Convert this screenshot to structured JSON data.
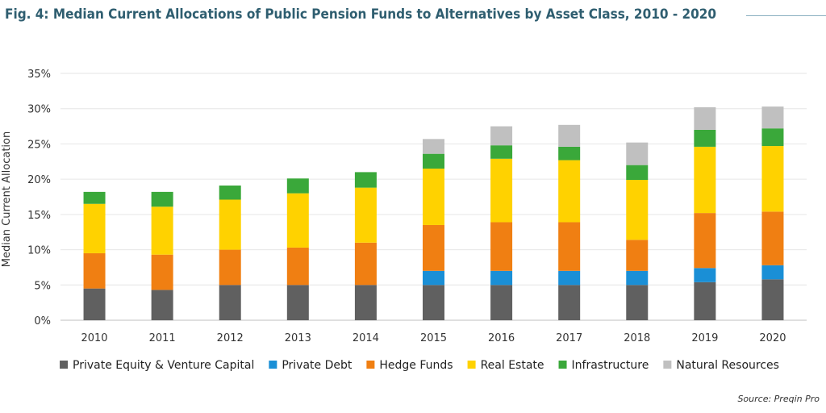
{
  "title": "Fig. 4: Median Current Allocations of Public Pension Funds to Alternatives by Asset Class, 2010 - 2020",
  "source": "Source: Preqin Pro",
  "chart_data": {
    "type": "bar",
    "stacked": true,
    "title": "Fig. 4: Median Current Allocations of Public Pension Funds to Alternatives by Asset Class, 2010 - 2020",
    "xlabel": "",
    "ylabel": "Median Current Allocation",
    "ylim": [
      0,
      35
    ],
    "yticks": [
      0,
      5,
      10,
      15,
      20,
      25,
      30,
      35
    ],
    "ytick_labels": [
      "0%",
      "5%",
      "10%",
      "15%",
      "20%",
      "25%",
      "30%",
      "35%"
    ],
    "grid": true,
    "legend_position": "bottom",
    "categories": [
      "2010",
      "2011",
      "2012",
      "2013",
      "2014",
      "2015",
      "2016",
      "2017",
      "2018",
      "2019",
      "2020"
    ],
    "series": [
      {
        "name": "Private Equity & Venture Capital",
        "color": "#606060",
        "values": [
          4.5,
          4.3,
          5.0,
          5.0,
          5.0,
          5.0,
          5.0,
          5.0,
          5.0,
          5.4,
          5.8
        ]
      },
      {
        "name": "Private Debt",
        "color": "#1a8fd6",
        "values": [
          0,
          0,
          0,
          0,
          0,
          2.0,
          2.0,
          2.0,
          2.0,
          2.0,
          2.0
        ]
      },
      {
        "name": "Hedge Funds",
        "color": "#f07f12",
        "values": [
          5.0,
          5.0,
          5.0,
          5.3,
          6.0,
          6.5,
          6.9,
          6.9,
          4.4,
          7.8,
          7.6
        ]
      },
      {
        "name": "Real Estate",
        "color": "#ffd200",
        "values": [
          7.0,
          6.8,
          7.1,
          7.7,
          7.8,
          8.0,
          9.0,
          8.8,
          8.5,
          9.4,
          9.3
        ]
      },
      {
        "name": "Infrastructure",
        "color": "#3aa83a",
        "values": [
          1.7,
          2.1,
          2.0,
          2.1,
          2.2,
          2.1,
          1.9,
          1.9,
          2.1,
          2.4,
          2.5
        ]
      },
      {
        "name": "Natural Resources",
        "color": "#c0c0c0",
        "values": [
          0,
          0,
          0,
          0,
          0,
          2.1,
          2.7,
          3.1,
          3.2,
          3.2,
          3.1
        ]
      }
    ]
  }
}
